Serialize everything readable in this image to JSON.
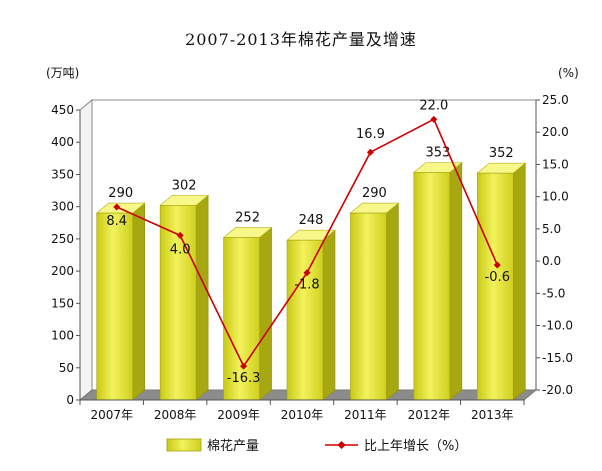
{
  "chart_data": {
    "type": "bar",
    "title": "2007-2013年棉花产量及增速",
    "left_unit": "(万吨)",
    "right_unit": "(%)",
    "categories": [
      "2007年",
      "2008年",
      "2009年",
      "2010年",
      "2011年",
      "2012年",
      "2013年"
    ],
    "ylim": [
      0,
      450
    ],
    "y_ticks": [
      "0",
      "50",
      "100",
      "150",
      "200",
      "250",
      "300",
      "350",
      "400",
      "450"
    ],
    "y2lim": [
      -20,
      25
    ],
    "y2_ticks": [
      "-20.0",
      "-15.0",
      "-10.0",
      "-5.0",
      "0.0",
      "5.0",
      "10.0",
      "15.0",
      "20.0",
      "25.0"
    ],
    "series": [
      {
        "name": "棉花产量",
        "type": "bar",
        "axis": "left",
        "color": "#e2e23a",
        "values": [
          290,
          302,
          252,
          248,
          290,
          353,
          352
        ],
        "labels": [
          "290",
          "302",
          "252",
          "248",
          "290",
          "353",
          "352"
        ]
      },
      {
        "name": "比上年增长（%）",
        "type": "line",
        "axis": "right",
        "color": "#cc0000",
        "values": [
          8.4,
          4.0,
          -16.3,
          -1.8,
          16.9,
          22.0,
          -0.6
        ],
        "labels": [
          "8.4",
          "4.0",
          "-16.3",
          "-1.8",
          "16.9",
          "22.0",
          "-0.6"
        ]
      }
    ],
    "grid": false,
    "legend_position": "bottom"
  }
}
